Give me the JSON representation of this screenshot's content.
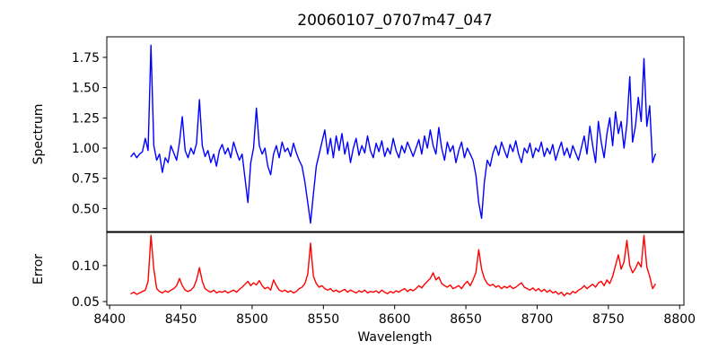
{
  "figure_title": "20060107_0707m47_047",
  "chart_data": {
    "type": "line",
    "title": "20060107_0707m47_047",
    "xlabel": "Wavelength",
    "grid": false,
    "legend": "none",
    "x_start": 8415,
    "x_step": 2,
    "x_end": 8783,
    "n_points": 185,
    "xlim": [
      8398,
      8803
    ],
    "xticks": [
      8400,
      8450,
      8500,
      8550,
      8600,
      8650,
      8700,
      8750,
      8800
    ],
    "xtick_labels": [
      "8400",
      "8450",
      "8500",
      "8550",
      "8600",
      "8650",
      "8700",
      "8750",
      "8800"
    ],
    "panels": [
      {
        "name": "spectrum",
        "ylabel": "Spectrum",
        "line_color": "#0000ff",
        "ylim": [
          0.31,
          1.92
        ],
        "yticks": [
          0.5,
          0.75,
          1.0,
          1.25,
          1.5,
          1.75
        ],
        "ytick_labels": [
          "0.50",
          "0.75",
          "1.00",
          "1.25",
          "1.50",
          "1.75"
        ],
        "features": "continuum near 1.0; emission spike 1.85 at 8429; peaks 1.26 at 8451, 1.40 at 8463, 1.33 at 8503; absorption dips 0.55 at 8497, 0.38 at 8541, 0.42 at 8661; peaks 1.59 at 8765, 1.74 at 8775",
        "values": [
          0.93,
          0.96,
          0.92,
          0.95,
          0.97,
          1.08,
          0.98,
          1.85,
          1.02,
          0.9,
          0.95,
          0.8,
          0.92,
          0.88,
          1.02,
          0.96,
          0.9,
          1.05,
          1.26,
          0.98,
          0.92,
          1.0,
          0.95,
          1.04,
          1.4,
          1.02,
          0.93,
          0.98,
          0.88,
          0.95,
          0.85,
          0.98,
          1.03,
          0.95,
          1.0,
          0.92,
          1.05,
          0.97,
          0.9,
          0.95,
          0.75,
          0.55,
          0.88,
          1.0,
          1.33,
          1.02,
          0.95,
          1.0,
          0.85,
          0.78,
          0.95,
          1.02,
          0.92,
          1.05,
          0.97,
          1.0,
          0.93,
          1.04,
          0.96,
          0.9,
          0.85,
          0.72,
          0.55,
          0.38,
          0.62,
          0.85,
          0.95,
          1.05,
          1.15,
          0.95,
          1.08,
          0.92,
          1.1,
          0.98,
          1.12,
          0.95,
          1.05,
          0.88,
          1.0,
          1.08,
          0.94,
          1.02,
          0.96,
          1.1,
          0.98,
          0.92,
          1.04,
          0.97,
          1.06,
          0.93,
          1.0,
          0.95,
          1.08,
          0.98,
          0.92,
          1.02,
          0.96,
          1.05,
          0.99,
          0.93,
          1.0,
          1.07,
          0.95,
          1.1,
          1.0,
          1.15,
          1.02,
          0.95,
          1.17,
          1.0,
          0.9,
          1.05,
          0.97,
          1.02,
          0.88,
          0.98,
          1.05,
          0.92,
          1.0,
          0.95,
          0.9,
          0.78,
          0.55,
          0.42,
          0.72,
          0.9,
          0.85,
          0.96,
          1.02,
          0.94,
          1.05,
          0.98,
          0.92,
          1.03,
          0.97,
          1.06,
          0.95,
          0.88,
          1.0,
          0.96,
          1.04,
          0.92,
          1.0,
          0.97,
          1.05,
          0.93,
          1.0,
          0.95,
          1.03,
          0.9,
          0.98,
          1.05,
          0.94,
          1.0,
          0.92,
          1.02,
          0.96,
          0.9,
          1.0,
          1.1,
          0.95,
          1.18,
          1.02,
          0.88,
          1.22,
          1.05,
          0.92,
          1.12,
          1.25,
          1.02,
          1.3,
          1.12,
          1.22,
          1.0,
          1.2,
          1.59,
          1.05,
          1.18,
          1.42,
          1.22,
          1.74,
          1.18,
          1.35,
          0.88,
          0.95
        ]
      },
      {
        "name": "error",
        "ylabel": "Error",
        "line_color": "#ff0000",
        "ylim": [
          0.045,
          0.146
        ],
        "yticks": [
          0.05,
          0.1
        ],
        "ytick_labels": [
          "0.05",
          "0.10"
        ],
        "features": "baseline near 0.065; spikes 0.142 at 8429, 0.097 at 8463, 0.131 at 8541, 0.122 at 8659, 0.135 at 8763, 0.142 at 8775",
        "values": [
          0.061,
          0.063,
          0.06,
          0.062,
          0.064,
          0.066,
          0.078,
          0.142,
          0.095,
          0.068,
          0.064,
          0.062,
          0.065,
          0.063,
          0.066,
          0.068,
          0.072,
          0.082,
          0.072,
          0.066,
          0.064,
          0.066,
          0.07,
          0.08,
          0.097,
          0.078,
          0.068,
          0.065,
          0.063,
          0.066,
          0.062,
          0.064,
          0.063,
          0.065,
          0.062,
          0.064,
          0.066,
          0.063,
          0.067,
          0.07,
          0.074,
          0.078,
          0.072,
          0.076,
          0.073,
          0.079,
          0.072,
          0.068,
          0.07,
          0.066,
          0.08,
          0.072,
          0.066,
          0.064,
          0.066,
          0.063,
          0.065,
          0.062,
          0.064,
          0.068,
          0.07,
          0.075,
          0.088,
          0.131,
          0.085,
          0.075,
          0.07,
          0.072,
          0.068,
          0.066,
          0.068,
          0.064,
          0.066,
          0.063,
          0.065,
          0.067,
          0.063,
          0.066,
          0.064,
          0.062,
          0.065,
          0.063,
          0.066,
          0.062,
          0.064,
          0.063,
          0.065,
          0.062,
          0.066,
          0.063,
          0.061,
          0.064,
          0.062,
          0.065,
          0.063,
          0.066,
          0.068,
          0.064,
          0.067,
          0.065,
          0.068,
          0.072,
          0.069,
          0.074,
          0.078,
          0.082,
          0.09,
          0.08,
          0.084,
          0.075,
          0.072,
          0.07,
          0.073,
          0.068,
          0.07,
          0.072,
          0.068,
          0.074,
          0.078,
          0.072,
          0.08,
          0.09,
          0.122,
          0.095,
          0.082,
          0.075,
          0.072,
          0.074,
          0.07,
          0.072,
          0.068,
          0.071,
          0.069,
          0.072,
          0.068,
          0.07,
          0.073,
          0.076,
          0.07,
          0.068,
          0.066,
          0.069,
          0.065,
          0.068,
          0.064,
          0.067,
          0.063,
          0.066,
          0.062,
          0.064,
          0.06,
          0.063,
          0.058,
          0.062,
          0.06,
          0.064,
          0.062,
          0.066,
          0.068,
          0.072,
          0.068,
          0.071,
          0.074,
          0.07,
          0.076,
          0.078,
          0.072,
          0.08,
          0.075,
          0.085,
          0.1,
          0.115,
          0.095,
          0.105,
          0.135,
          0.1,
          0.09,
          0.096,
          0.105,
          0.098,
          0.142,
          0.098,
          0.085,
          0.068,
          0.074
        ]
      }
    ]
  }
}
